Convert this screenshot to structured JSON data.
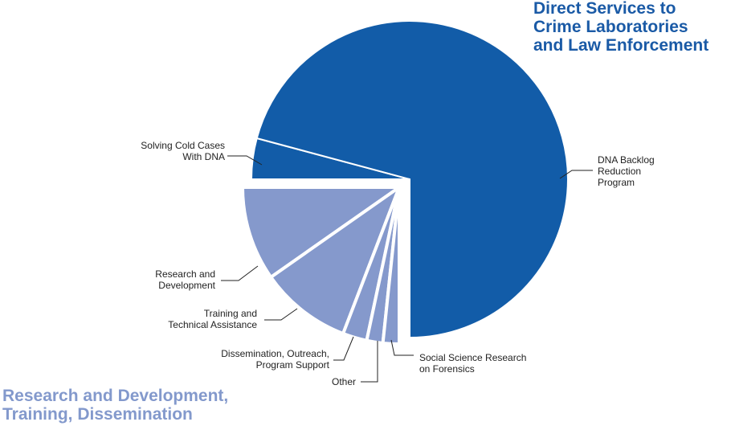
{
  "chart_data": {
    "type": "pie",
    "title": "",
    "units": "approximate share of total (%)",
    "groups": [
      {
        "name": "Direct Services to Crime Laboratories and Law Enforcement",
        "color": "#125ca8",
        "exploded": false,
        "slices": [
          {
            "label": "DNA Backlog Reduction Program",
            "value": 70.8,
            "degrees": 255
          },
          {
            "label": "Solving Cold Cases With DNA",
            "value": 4.2,
            "degrees": 15
          }
        ]
      },
      {
        "name": "Research and Development, Training, Dissemination",
        "color": "#8599cc",
        "exploded": true,
        "slices": [
          {
            "label": "Research and Development",
            "value": 9.7,
            "degrees": 35
          },
          {
            "label": "Training and Technical Assistance",
            "value": 9.4,
            "degrees": 34
          },
          {
            "label": "Dissemination, Outreach, Program Support",
            "value": 2.5,
            "degrees": 9
          },
          {
            "label": "Other",
            "value": 1.7,
            "degrees": 6
          },
          {
            "label": "Social Science Research on Forensics",
            "value": 1.7,
            "degrees": 6
          }
        ]
      }
    ],
    "legend_position": "group headings (top-right dark, bottom-left light)"
  },
  "headings": {
    "direct": [
      "Direct Services to",
      "Crime Laboratories",
      "and Law Enforcement"
    ],
    "research": [
      "Research and Development,",
      "Training, Dissemination"
    ]
  },
  "labels": {
    "dna_backlog": [
      "DNA Backlog",
      "Reduction",
      "Program"
    ],
    "cold_cases": [
      "Solving Cold Cases",
      "With DNA"
    ],
    "research_dev": [
      "Research and",
      "Development"
    ],
    "training": [
      "Training and",
      "Technical Assistance"
    ],
    "dissemination": [
      "Dissemination, Outreach,",
      "Program Support"
    ],
    "other": [
      "Other"
    ],
    "social_science": [
      "Social Science Research",
      "on Forensics"
    ]
  },
  "colors": {
    "dark": "#125ca8",
    "light": "#8599cc",
    "separator": "#ffffff",
    "leader": "#222222"
  }
}
